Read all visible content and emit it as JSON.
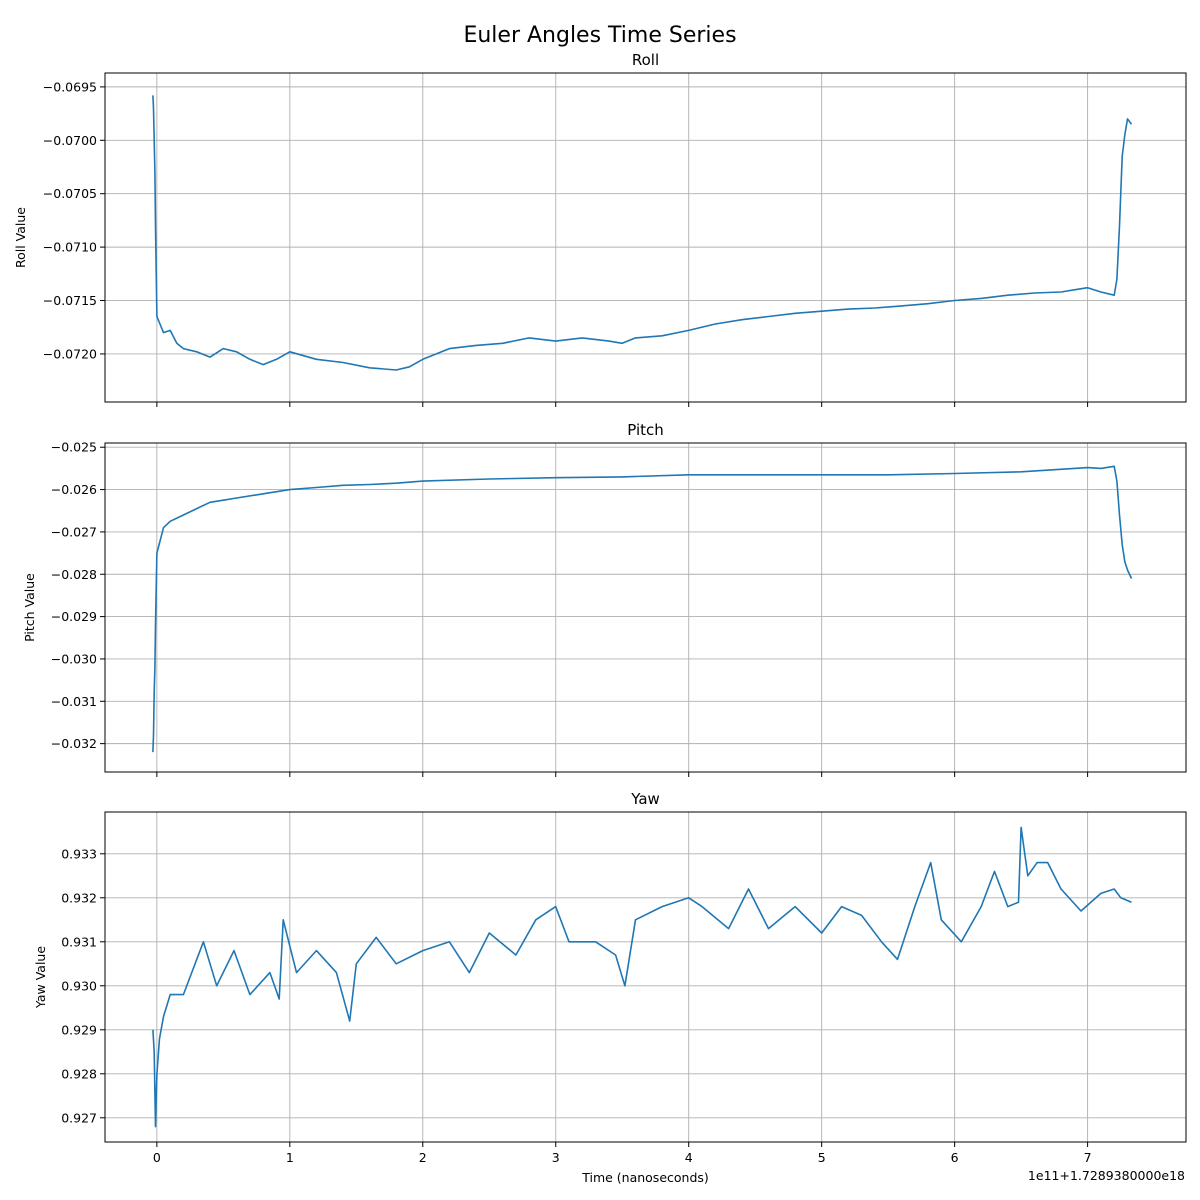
{
  "figure_title": "Euler Angles Time Series",
  "x_offset_label": "1e11+1.7289380000e18",
  "colors": {
    "line": "#1f77b4",
    "grid": "#b0b0b0"
  },
  "chart_data": [
    {
      "type": "line",
      "title": "Roll",
      "xlabel": "",
      "ylabel": "Roll Value",
      "xlim": [
        -0.39,
        7.74
      ],
      "ylim": [
        -0.07245,
        -0.06937
      ],
      "x_ticks": [
        0,
        1,
        2,
        3,
        4,
        5,
        6,
        7
      ],
      "x_tick_labels": [],
      "y_ticks": [
        -0.0695,
        -0.07,
        -0.0705,
        -0.071,
        -0.0715,
        -0.072
      ],
      "y_tick_labels": [
        "−0.0695",
        "−0.0700",
        "−0.0705",
        "−0.0710",
        "−0.0715",
        "−0.0720"
      ],
      "grid": true,
      "series": [
        {
          "x": [
            -0.03,
            -0.025,
            -0.02,
            -0.015,
            -0.01,
            0.0,
            0.05,
            0.1,
            0.15,
            0.2,
            0.3,
            0.4,
            0.5,
            0.6,
            0.7,
            0.8,
            0.9,
            1.0,
            1.2,
            1.4,
            1.6,
            1.8,
            1.9,
            2.0,
            2.2,
            2.4,
            2.6,
            2.8,
            3.0,
            3.2,
            3.4,
            3.5,
            3.6,
            3.8,
            4.0,
            4.2,
            4.4,
            4.6,
            4.8,
            5.0,
            5.2,
            5.4,
            5.6,
            5.8,
            6.0,
            6.2,
            6.4,
            6.6,
            6.8,
            6.9,
            7.0,
            7.1,
            7.2,
            7.22,
            7.24,
            7.26,
            7.28,
            7.3,
            7.33
          ],
          "y": [
            -0.06958,
            -0.0697,
            -0.07,
            -0.0703,
            -0.0708,
            -0.07165,
            -0.0718,
            -0.07178,
            -0.0719,
            -0.07195,
            -0.07198,
            -0.07203,
            -0.07195,
            -0.07198,
            -0.07205,
            -0.0721,
            -0.07205,
            -0.07198,
            -0.07205,
            -0.07208,
            -0.07213,
            -0.07215,
            -0.07212,
            -0.07205,
            -0.07195,
            -0.07192,
            -0.0719,
            -0.07185,
            -0.07188,
            -0.07185,
            -0.07188,
            -0.0719,
            -0.07185,
            -0.07183,
            -0.07178,
            -0.07172,
            -0.07168,
            -0.07165,
            -0.07162,
            -0.0716,
            -0.07158,
            -0.07157,
            -0.07155,
            -0.07153,
            -0.0715,
            -0.07148,
            -0.07145,
            -0.07143,
            -0.07142,
            -0.0714,
            -0.07138,
            -0.07142,
            -0.07145,
            -0.0713,
            -0.0708,
            -0.07015,
            -0.06995,
            -0.0698,
            -0.06985
          ]
        }
      ]
    },
    {
      "type": "line",
      "title": "Pitch",
      "xlabel": "",
      "ylabel": "Pitch Value",
      "xlim": [
        -0.39,
        7.74
      ],
      "ylim": [
        -0.03267,
        -0.0249
      ],
      "x_ticks": [
        0,
        1,
        2,
        3,
        4,
        5,
        6,
        7
      ],
      "x_tick_labels": [],
      "y_ticks": [
        -0.025,
        -0.026,
        -0.027,
        -0.028,
        -0.029,
        -0.03,
        -0.031,
        -0.032
      ],
      "y_tick_labels": [
        "−0.025",
        "−0.026",
        "−0.027",
        "−0.028",
        "−0.029",
        "−0.030",
        "−0.031",
        "−0.032"
      ],
      "grid": true,
      "series": [
        {
          "x": [
            -0.03,
            -0.025,
            -0.02,
            -0.015,
            -0.01,
            0.0,
            0.05,
            0.1,
            0.2,
            0.3,
            0.4,
            0.5,
            0.6,
            0.8,
            1.0,
            1.2,
            1.4,
            1.6,
            1.8,
            2.0,
            2.5,
            3.0,
            3.5,
            4.0,
            4.5,
            5.0,
            5.5,
            6.0,
            6.5,
            6.9,
            7.0,
            7.1,
            7.2,
            7.22,
            7.24,
            7.26,
            7.28,
            7.3,
            7.33
          ],
          "y": [
            -0.0322,
            -0.0318,
            -0.0308,
            -0.0302,
            -0.0292,
            -0.0275,
            -0.0269,
            -0.02675,
            -0.0266,
            -0.02645,
            -0.0263,
            -0.02625,
            -0.0262,
            -0.0261,
            -0.026,
            -0.02595,
            -0.0259,
            -0.02588,
            -0.02585,
            -0.0258,
            -0.02575,
            -0.02572,
            -0.0257,
            -0.02565,
            -0.02565,
            -0.02565,
            -0.02565,
            -0.02562,
            -0.02558,
            -0.0255,
            -0.02548,
            -0.0255,
            -0.02545,
            -0.0258,
            -0.0266,
            -0.0273,
            -0.0277,
            -0.0279,
            -0.0281
          ]
        }
      ]
    },
    {
      "type": "line",
      "title": "Yaw",
      "xlabel": "Time (nanoseconds)",
      "ylabel": "Yaw Value",
      "xlim": [
        -0.39,
        7.74
      ],
      "ylim": [
        0.92645,
        0.93395
      ],
      "x_ticks": [
        0,
        1,
        2,
        3,
        4,
        5,
        6,
        7
      ],
      "x_tick_labels": [
        "0",
        "1",
        "2",
        "3",
        "4",
        "5",
        "6",
        "7"
      ],
      "y_ticks": [
        0.927,
        0.928,
        0.929,
        0.93,
        0.931,
        0.932,
        0.933
      ],
      "y_tick_labels": [
        "0.927",
        "0.928",
        "0.929",
        "0.930",
        "0.931",
        "0.932",
        "0.933"
      ],
      "grid": true,
      "series": [
        {
          "x": [
            -0.03,
            -0.02,
            -0.01,
            0.0,
            0.02,
            0.05,
            0.1,
            0.2,
            0.35,
            0.45,
            0.58,
            0.7,
            0.85,
            0.92,
            0.95,
            1.05,
            1.2,
            1.35,
            1.45,
            1.5,
            1.65,
            1.8,
            2.0,
            2.2,
            2.35,
            2.5,
            2.7,
            2.85,
            3.0,
            3.1,
            3.3,
            3.45,
            3.52,
            3.6,
            3.8,
            4.0,
            4.1,
            4.3,
            4.45,
            4.6,
            4.8,
            5.0,
            5.15,
            5.3,
            5.45,
            5.57,
            5.7,
            5.82,
            5.9,
            6.05,
            6.2,
            6.3,
            6.4,
            6.48,
            6.5,
            6.55,
            6.62,
            6.7,
            6.8,
            6.95,
            7.1,
            7.2,
            7.25,
            7.33
          ],
          "y": [
            0.929,
            0.9285,
            0.9268,
            0.928,
            0.9288,
            0.9293,
            0.9298,
            0.9298,
            0.931,
            0.93,
            0.9308,
            0.9298,
            0.9303,
            0.9297,
            0.9315,
            0.9303,
            0.9308,
            0.9303,
            0.9292,
            0.9305,
            0.9311,
            0.9305,
            0.9308,
            0.931,
            0.9303,
            0.9312,
            0.9307,
            0.9315,
            0.9318,
            0.931,
            0.931,
            0.9307,
            0.93,
            0.9315,
            0.9318,
            0.932,
            0.9318,
            0.9313,
            0.9322,
            0.9313,
            0.9318,
            0.9312,
            0.9318,
            0.9316,
            0.931,
            0.9306,
            0.9318,
            0.9328,
            0.9315,
            0.931,
            0.9318,
            0.9326,
            0.9318,
            0.9319,
            0.9336,
            0.9325,
            0.9328,
            0.9328,
            0.9322,
            0.9317,
            0.9321,
            0.9322,
            0.932,
            0.9319
          ]
        }
      ]
    }
  ]
}
